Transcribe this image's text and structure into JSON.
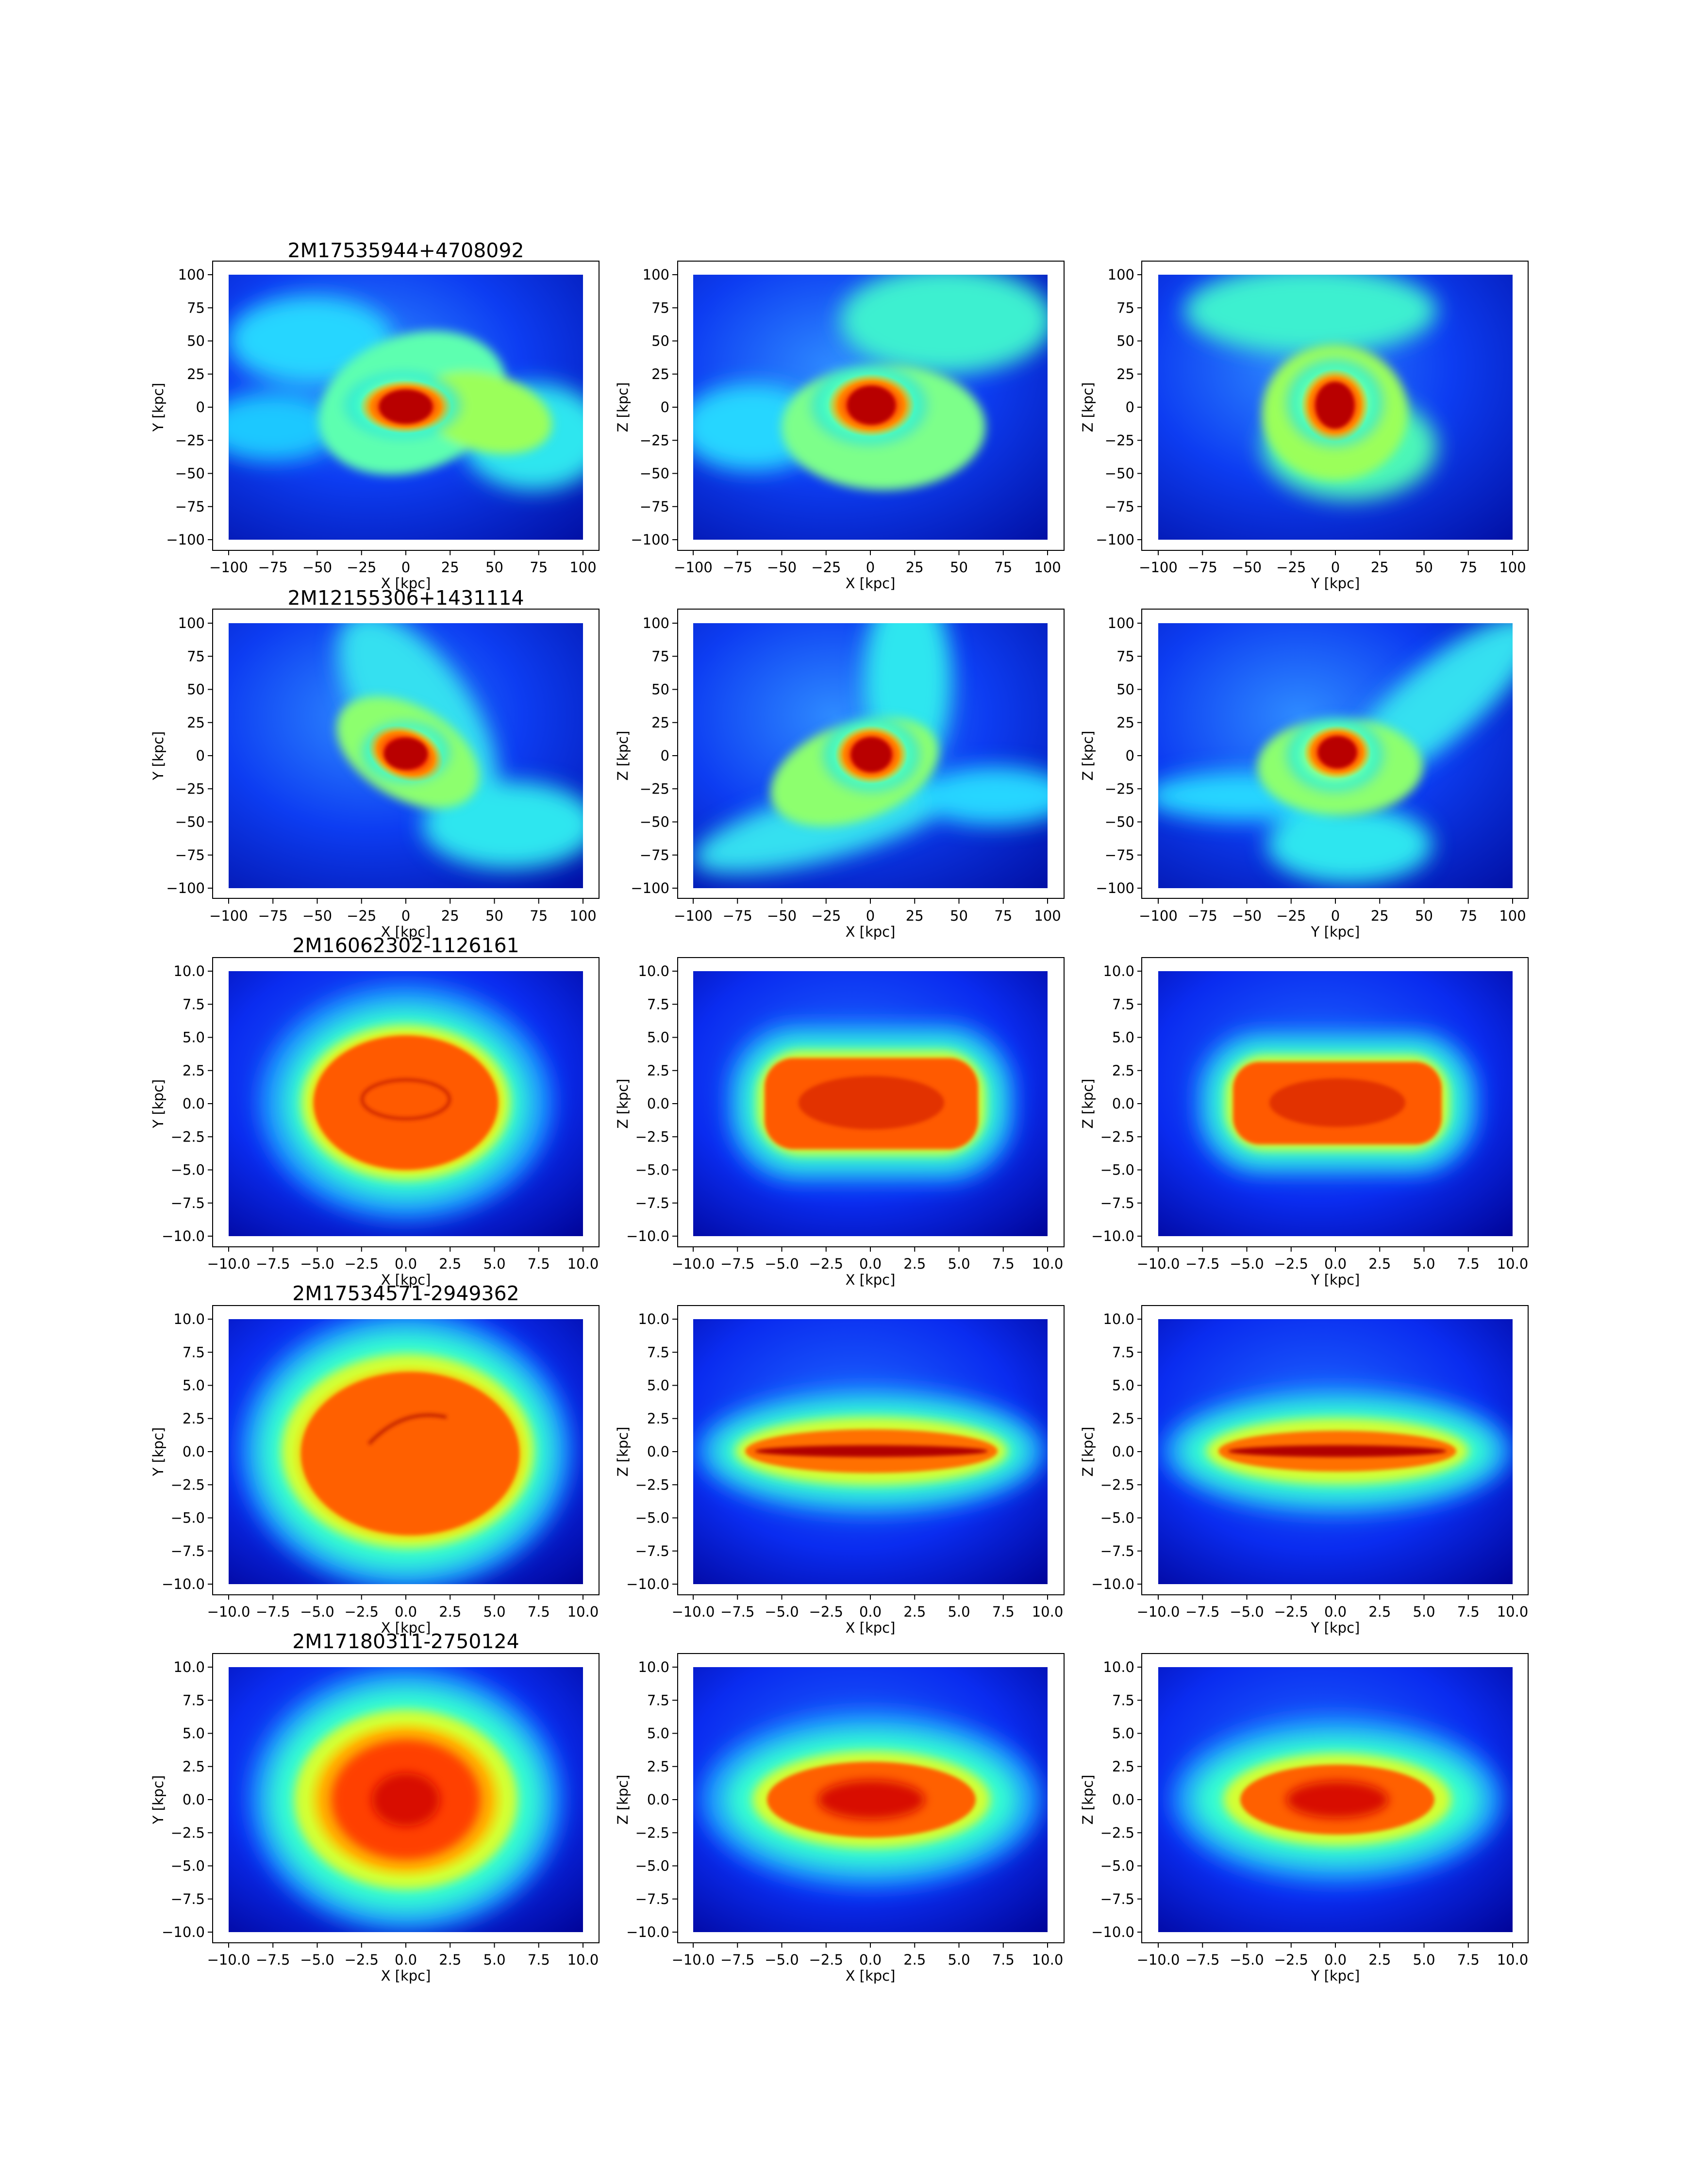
{
  "chart_data": [
    {
      "type": "heatmap",
      "title": "2M17535944+4708092",
      "panels": [
        {
          "xlabel": "X [kpc]",
          "ylabel": "Y [kpc]",
          "xlim": [
            -100,
            100
          ],
          "ylim": [
            -100,
            100
          ],
          "xticks": [
            "−100",
            "−75",
            "−50",
            "−25",
            "0",
            "25",
            "50",
            "75",
            "100"
          ],
          "yticks": [
            "−100",
            "−75",
            "−50",
            "−25",
            "0",
            "25",
            "50",
            "75",
            "100"
          ]
        },
        {
          "xlabel": "X [kpc]",
          "ylabel": "Z [kpc]",
          "xlim": [
            -100,
            100
          ],
          "ylim": [
            -100,
            100
          ],
          "xticks": [
            "−100",
            "−75",
            "−50",
            "−25",
            "0",
            "25",
            "50",
            "75",
            "100"
          ],
          "yticks": [
            "−100",
            "−75",
            "−50",
            "−25",
            "0",
            "25",
            "50",
            "75",
            "100"
          ]
        },
        {
          "xlabel": "Y [kpc]",
          "ylabel": "Z [kpc]",
          "xlim": [
            -100,
            100
          ],
          "ylim": [
            -100,
            100
          ],
          "xticks": [
            "−100",
            "−75",
            "−50",
            "−25",
            "0",
            "25",
            "50",
            "75",
            "100"
          ],
          "yticks": [
            "−100",
            "−75",
            "−50",
            "−25",
            "0",
            "25",
            "50",
            "75",
            "100"
          ]
        }
      ]
    },
    {
      "type": "heatmap",
      "title": "2M12155306+1431114",
      "panels": [
        {
          "xlabel": "X [kpc]",
          "ylabel": "Y [kpc]",
          "xlim": [
            -100,
            100
          ],
          "ylim": [
            -100,
            100
          ],
          "xticks": [
            "−100",
            "−75",
            "−50",
            "−25",
            "0",
            "25",
            "50",
            "75",
            "100"
          ],
          "yticks": [
            "−100",
            "−75",
            "−50",
            "−25",
            "0",
            "25",
            "50",
            "75",
            "100"
          ]
        },
        {
          "xlabel": "X [kpc]",
          "ylabel": "Z [kpc]",
          "xlim": [
            -100,
            100
          ],
          "ylim": [
            -100,
            100
          ],
          "xticks": [
            "−100",
            "−75",
            "−50",
            "−25",
            "0",
            "25",
            "50",
            "75",
            "100"
          ],
          "yticks": [
            "−100",
            "−75",
            "−50",
            "−25",
            "0",
            "25",
            "50",
            "75",
            "100"
          ]
        },
        {
          "xlabel": "Y [kpc]",
          "ylabel": "Z [kpc]",
          "xlim": [
            -100,
            100
          ],
          "ylim": [
            -100,
            100
          ],
          "xticks": [
            "−100",
            "−75",
            "−50",
            "−25",
            "0",
            "25",
            "50",
            "75",
            "100"
          ],
          "yticks": [
            "−100",
            "−75",
            "−50",
            "−25",
            "0",
            "25",
            "50",
            "75",
            "100"
          ]
        }
      ]
    },
    {
      "type": "heatmap",
      "title": "2M16062302-1126161",
      "panels": [
        {
          "xlabel": "X [kpc]",
          "ylabel": "Y [kpc]",
          "xlim": [
            -10,
            10
          ],
          "ylim": [
            -10,
            10
          ],
          "xticks": [
            "−10.0",
            "−7.5",
            "−5.0",
            "−2.5",
            "0.0",
            "2.5",
            "5.0",
            "7.5",
            "10.0"
          ],
          "yticks": [
            "−10.0",
            "−7.5",
            "−5.0",
            "−2.5",
            "0.0",
            "2.5",
            "5.0",
            "7.5",
            "10.0"
          ]
        },
        {
          "xlabel": "X [kpc]",
          "ylabel": "Z [kpc]",
          "xlim": [
            -10,
            10
          ],
          "ylim": [
            -10,
            10
          ],
          "xticks": [
            "−10.0",
            "−7.5",
            "−5.0",
            "−2.5",
            "0.0",
            "2.5",
            "5.0",
            "7.5",
            "10.0"
          ],
          "yticks": [
            "−10.0",
            "−7.5",
            "−5.0",
            "−2.5",
            "0.0",
            "2.5",
            "5.0",
            "7.5",
            "10.0"
          ]
        },
        {
          "xlabel": "Y [kpc]",
          "ylabel": "Z [kpc]",
          "xlim": [
            -10,
            10
          ],
          "ylim": [
            -10,
            10
          ],
          "xticks": [
            "−10.0",
            "−7.5",
            "−5.0",
            "−2.5",
            "0.0",
            "2.5",
            "5.0",
            "7.5",
            "10.0"
          ],
          "yticks": [
            "−10.0",
            "−7.5",
            "−5.0",
            "−2.5",
            "0.0",
            "2.5",
            "5.0",
            "7.5",
            "10.0"
          ]
        }
      ]
    },
    {
      "type": "heatmap",
      "title": "2M17534571-2949362",
      "panels": [
        {
          "xlabel": "X [kpc]",
          "ylabel": "Y [kpc]",
          "xlim": [
            -10,
            10
          ],
          "ylim": [
            -10,
            10
          ],
          "xticks": [
            "−10.0",
            "−7.5",
            "−5.0",
            "−2.5",
            "0.0",
            "2.5",
            "5.0",
            "7.5",
            "10.0"
          ],
          "yticks": [
            "−10.0",
            "−7.5",
            "−5.0",
            "−2.5",
            "0.0",
            "2.5",
            "5.0",
            "7.5",
            "10.0"
          ]
        },
        {
          "xlabel": "X [kpc]",
          "ylabel": "Z [kpc]",
          "xlim": [
            -10,
            10
          ],
          "ylim": [
            -10,
            10
          ],
          "xticks": [
            "−10.0",
            "−7.5",
            "−5.0",
            "−2.5",
            "0.0",
            "2.5",
            "5.0",
            "7.5",
            "10.0"
          ],
          "yticks": [
            "−10.0",
            "−7.5",
            "−5.0",
            "−2.5",
            "0.0",
            "2.5",
            "5.0",
            "7.5",
            "10.0"
          ]
        },
        {
          "xlabel": "Y [kpc]",
          "ylabel": "Z [kpc]",
          "xlim": [
            -10,
            10
          ],
          "ylim": [
            -10,
            10
          ],
          "xticks": [
            "−10.0",
            "−7.5",
            "−5.0",
            "−2.5",
            "0.0",
            "2.5",
            "5.0",
            "7.5",
            "10.0"
          ],
          "yticks": [
            "−10.0",
            "−7.5",
            "−5.0",
            "−2.5",
            "0.0",
            "2.5",
            "5.0",
            "7.5",
            "10.0"
          ]
        }
      ]
    },
    {
      "type": "heatmap",
      "title": "2M17180311-2750124",
      "panels": [
        {
          "xlabel": "X [kpc]",
          "ylabel": "Y [kpc]",
          "xlim": [
            -10,
            10
          ],
          "ylim": [
            -10,
            10
          ],
          "xticks": [
            "−10.0",
            "−7.5",
            "−5.0",
            "−2.5",
            "0.0",
            "2.5",
            "5.0",
            "7.5",
            "10.0"
          ],
          "yticks": [
            "−10.0",
            "−7.5",
            "−5.0",
            "−2.5",
            "0.0",
            "2.5",
            "5.0",
            "7.5",
            "10.0"
          ]
        },
        {
          "xlabel": "X [kpc]",
          "ylabel": "Z [kpc]",
          "xlim": [
            -10,
            10
          ],
          "ylim": [
            -10,
            10
          ],
          "xticks": [
            "−10.0",
            "−7.5",
            "−5.0",
            "−2.5",
            "0.0",
            "2.5",
            "5.0",
            "7.5",
            "10.0"
          ],
          "yticks": [
            "−10.0",
            "−7.5",
            "−5.0",
            "−2.5",
            "0.0",
            "2.5",
            "5.0",
            "7.5",
            "10.0"
          ]
        },
        {
          "xlabel": "Y [kpc]",
          "ylabel": "Z [kpc]",
          "xlim": [
            -10,
            10
          ],
          "ylim": [
            -10,
            10
          ],
          "xticks": [
            "−10.0",
            "−7.5",
            "−5.0",
            "−2.5",
            "0.0",
            "2.5",
            "5.0",
            "7.5",
            "10.0"
          ],
          "yticks": [
            "−10.0",
            "−7.5",
            "−5.0",
            "−2.5",
            "0.0",
            "2.5",
            "5.0",
            "7.5",
            "10.0"
          ]
        }
      ]
    }
  ]
}
